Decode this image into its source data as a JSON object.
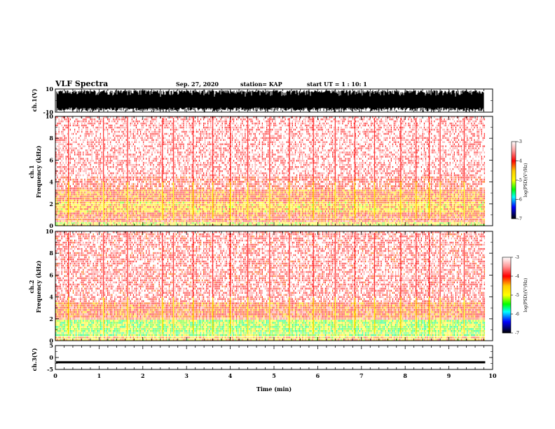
{
  "header": {
    "title": "VLF Spectra",
    "date": "Sep. 27, 2020",
    "station": "station= KAP",
    "start": "start  UT =   1 : 10: 1"
  },
  "colors": {
    "colormap": [
      "#ffffff",
      "#ff0000",
      "#ffff00",
      "#00ff00",
      "#00ffff",
      "#0000ff",
      "#000000"
    ]
  },
  "chart_data": [
    {
      "id": "ch1_waveform",
      "type": "area",
      "ylabel": "ch.1(V)",
      "ylim": [
        -10,
        10
      ],
      "yticks": [
        "10",
        "-10"
      ],
      "xlim": [
        0,
        10
      ],
      "description_values": {
        "min_level": -10,
        "max_level": 10,
        "typical_envelope": [
          -6,
          9
        ]
      }
    },
    {
      "id": "ch1_spectrogram",
      "type": "heatmap",
      "ylabel": "ch.1\nFrequency (kHz)",
      "ylabel_lines": [
        "ch.1",
        "Frequency (kHz)"
      ],
      "ylim": [
        0,
        10
      ],
      "yticks": [
        "0",
        "2",
        "4",
        "6",
        "8",
        "10"
      ],
      "xlim": [
        0,
        10
      ],
      "band_profile": [
        {
          "freq_khz": [
            0.0,
            0.3
          ],
          "level": -4.2
        },
        {
          "freq_khz": [
            0.3,
            1.2
          ],
          "level": -3.6
        },
        {
          "freq_khz": [
            1.2,
            2.2
          ],
          "level": -4.0
        },
        {
          "freq_khz": [
            2.2,
            3.3
          ],
          "level": -3.7
        },
        {
          "freq_khz": [
            3.3,
            4.5
          ],
          "level": -3.3
        },
        {
          "freq_khz": [
            4.5,
            10.0
          ],
          "level": -3.1
        }
      ],
      "impulsive_events_min": [
        0.3,
        1.1,
        1.65,
        2.45,
        2.7,
        3.15,
        3.6,
        4.0,
        4.4,
        4.9,
        5.35,
        5.9,
        6.4,
        6.85,
        7.3,
        7.9,
        8.25,
        8.55,
        8.8,
        9.35
      ]
    },
    {
      "id": "ch1_colorbar",
      "type": "heatmap",
      "label": "log(PSD)(V²/Hz)",
      "range": [
        -7,
        -3
      ],
      "ticks": [
        "-3",
        "-4",
        "-5",
        "-6",
        "-7"
      ]
    },
    {
      "id": "ch2_spectrogram",
      "type": "heatmap",
      "ylabel": "ch.2\nFrequency (kHz)",
      "ylabel_lines": [
        "ch.2",
        "Frequency (kHz)"
      ],
      "ylim": [
        0,
        10
      ],
      "yticks": [
        "0",
        "2",
        "4",
        "6",
        "8",
        "10"
      ],
      "xlim": [
        0,
        10
      ],
      "band_profile": [
        {
          "freq_khz": [
            0.0,
            0.4
          ],
          "level": -4.0
        },
        {
          "freq_khz": [
            0.4,
            1.9
          ],
          "level": -4.5
        },
        {
          "freq_khz": [
            1.9,
            3.5
          ],
          "level": -3.6
        },
        {
          "freq_khz": [
            3.5,
            10.0
          ],
          "level": -3.2
        }
      ],
      "impulsive_events_min": [
        0.3,
        1.1,
        1.65,
        2.45,
        2.7,
        3.15,
        3.6,
        4.0,
        4.4,
        4.9,
        5.35,
        5.9,
        6.4,
        6.85,
        7.3,
        7.9,
        8.25,
        8.55,
        8.8,
        9.35
      ]
    },
    {
      "id": "ch2_colorbar",
      "type": "heatmap",
      "label": "log(PSD)(V²/Hz)",
      "range": [
        -7,
        -3
      ],
      "ticks": [
        "-3",
        "-4",
        "-5",
        "-6",
        "-7"
      ]
    },
    {
      "id": "ch3_waveform",
      "type": "line",
      "ylabel": "ch.3(V)",
      "ylim": [
        -5,
        5
      ],
      "yticks": [
        "5",
        "0",
        "-5"
      ],
      "xlim": [
        0,
        10
      ],
      "xlabel": "Time (min)",
      "xticks": [
        "0",
        "1",
        "2",
        "3",
        "4",
        "5",
        "6",
        "7",
        "8",
        "9",
        "10"
      ],
      "description_values": {
        "level": -2,
        "thickness_v": 0.9
      }
    }
  ]
}
